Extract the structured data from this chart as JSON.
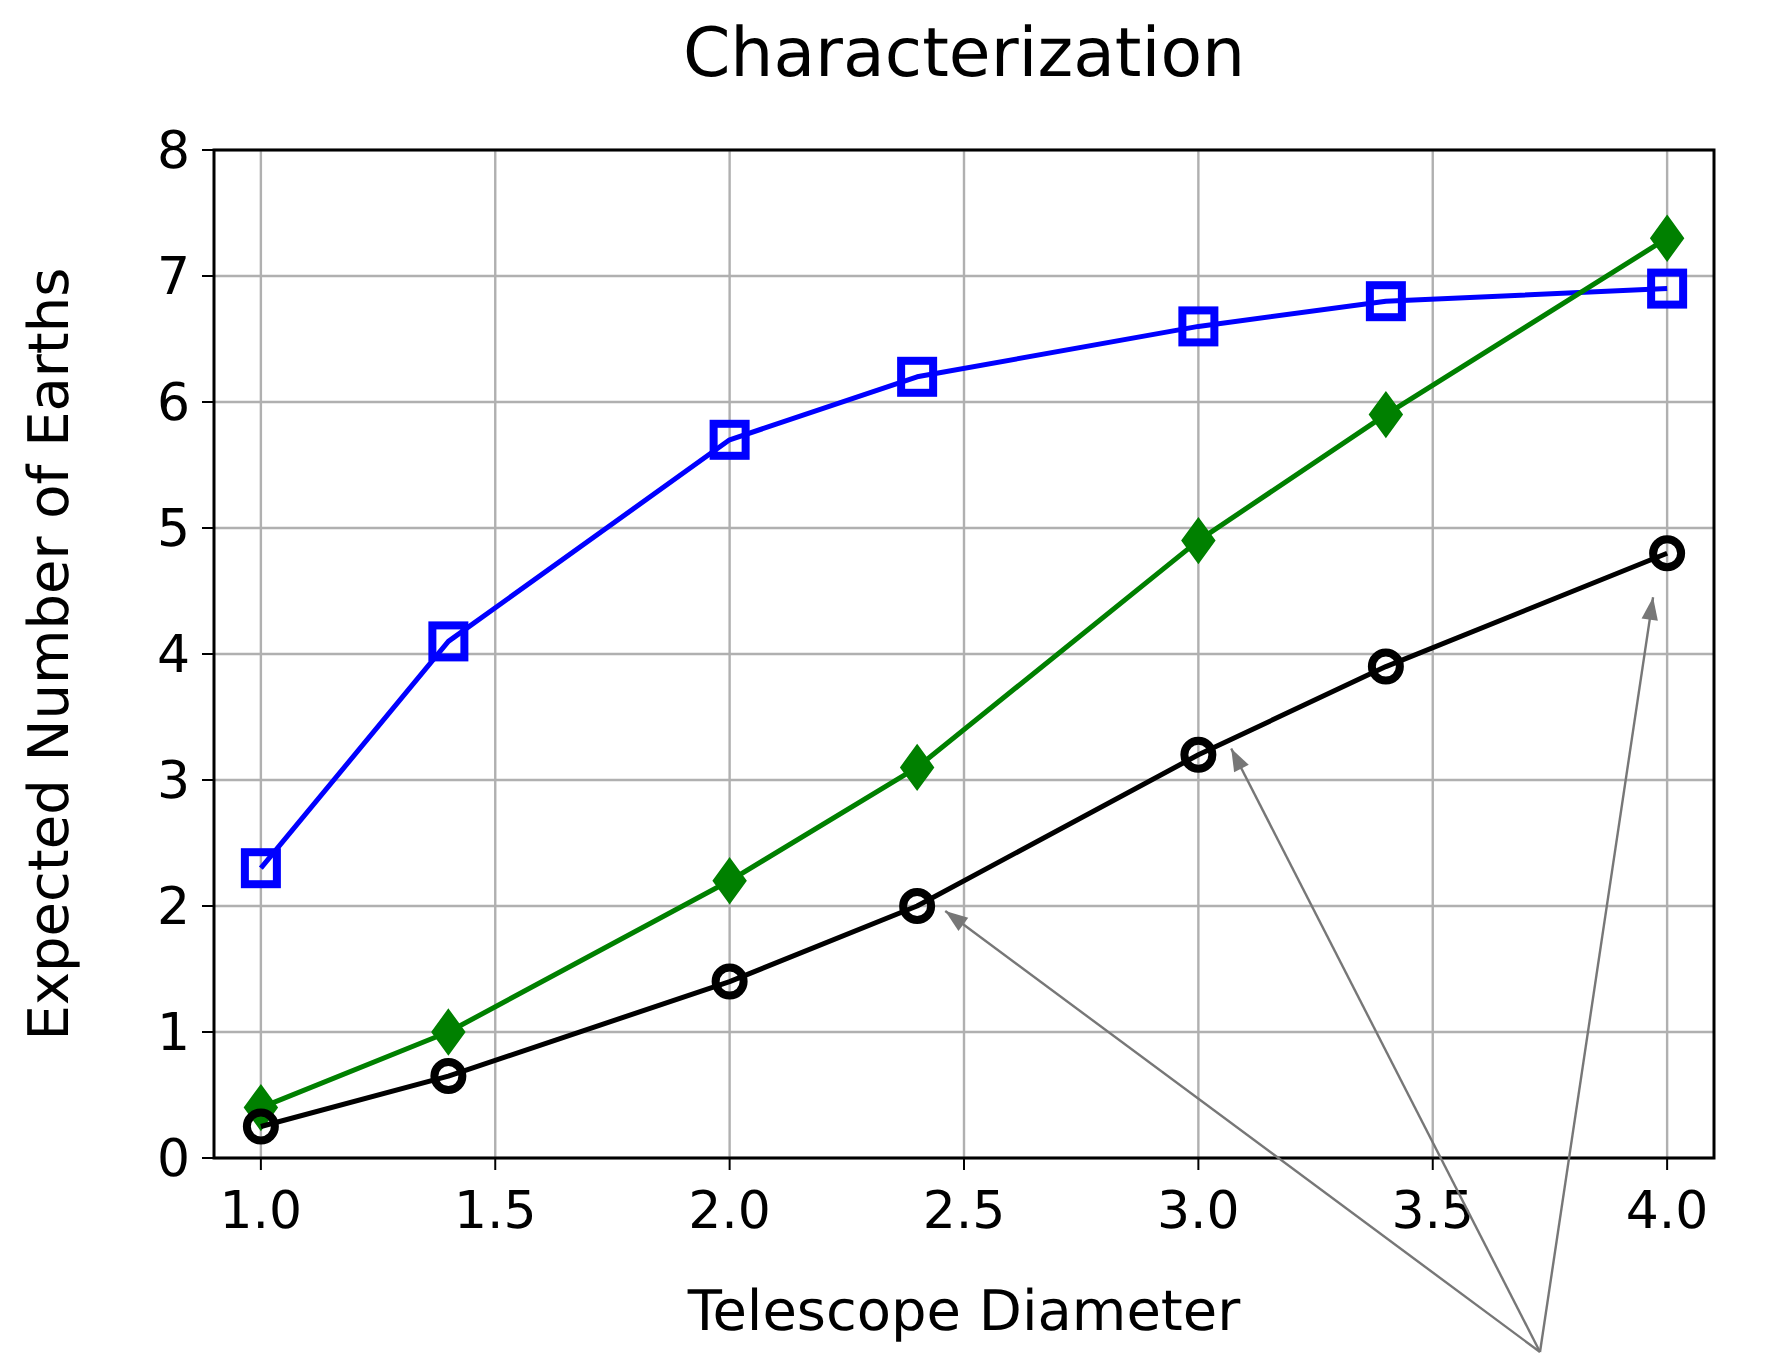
{
  "chart_data": {
    "type": "line",
    "title": "Characterization",
    "xlabel": "Telescope Diameter",
    "ylabel": "Expected Number of Earths",
    "x": [
      1.0,
      1.4,
      2.0,
      2.4,
      3.0,
      3.4,
      4.0
    ],
    "series": [
      {
        "color": "#0000ff",
        "marker": "square",
        "values": [
          2.3,
          4.1,
          5.7,
          6.2,
          6.6,
          6.8,
          6.9
        ]
      },
      {
        "color": "#008000",
        "marker": "diamond",
        "values": [
          0.4,
          1.0,
          2.2,
          3.1,
          4.9,
          5.9,
          7.3
        ]
      },
      {
        "color": "#000000",
        "marker": "circle",
        "values": [
          0.25,
          0.65,
          1.4,
          2.0,
          3.2,
          3.9,
          4.8
        ]
      }
    ],
    "xlim": [
      0.9,
      4.1
    ],
    "xticks": [
      {
        "value": 1,
        "label": "1.0"
      },
      {
        "value": 1.5,
        "label": "1.5"
      },
      {
        "value": 2,
        "label": "2.0"
      },
      {
        "value": 2.5,
        "label": "2.5"
      },
      {
        "value": 3,
        "label": "3.0"
      },
      {
        "value": 3.5,
        "label": "3.5"
      },
      {
        "value": 4,
        "label": "4.0"
      }
    ],
    "ylim": [
      0,
      8
    ],
    "yticks": [
      0,
      1,
      2,
      3,
      4,
      5,
      6,
      7,
      8
    ],
    "grid": true
  }
}
